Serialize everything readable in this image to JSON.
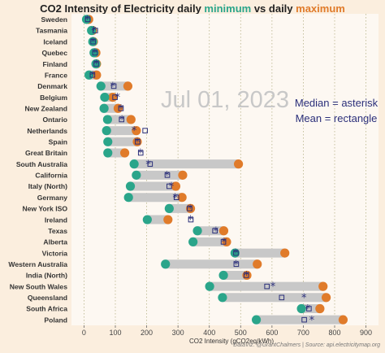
{
  "chart_data": {
    "type": "dumbbell",
    "title_parts": [
      "CO2 Intensity of Electricity daily ",
      "minimum",
      " vs daily ",
      "maximum"
    ],
    "date_label": "Jul 01, 2023",
    "annotation_lines": [
      "Median = asterisk",
      "Mean = rectangle"
    ],
    "xlabel": "CO2 Intensity (gCO2eq/kWh)",
    "xlim": [
      -40,
      940
    ],
    "xticks": [
      0,
      100,
      200,
      300,
      400,
      500,
      600,
      700,
      800,
      900
    ],
    "grid": "vertical dotted",
    "colors": {
      "min": "#2aa58a",
      "max": "#e07b2a",
      "bar": "#c8c8c8",
      "mean_median": "#2b2f7a",
      "background": "#fbeede",
      "plot_bg": "#fdf8f2"
    },
    "regions": [
      {
        "name": "Sweden",
        "min": 8,
        "max": 15,
        "mean": 12,
        "median": 11
      },
      {
        "name": "Tasmania",
        "min": 24,
        "max": 27,
        "mean": 36,
        "median": 31
      },
      {
        "name": "Iceland",
        "min": 28,
        "max": 30,
        "mean": 29,
        "median": 29
      },
      {
        "name": "Quebec",
        "min": 32,
        "max": 38,
        "mean": 35,
        "median": 35
      },
      {
        "name": "Finland",
        "min": 38,
        "max": 40,
        "mean": 39,
        "median": 39
      },
      {
        "name": "France",
        "min": 16,
        "max": 40,
        "mean": 27,
        "median": 28
      },
      {
        "name": "Denmark",
        "min": 54,
        "max": 140,
        "mean": 95,
        "median": 92
      },
      {
        "name": "Belgium",
        "min": 66,
        "max": 92,
        "mean": 99,
        "median": 107
      },
      {
        "name": "New Zealand",
        "min": 64,
        "max": 109,
        "mean": 118,
        "median": 118
      },
      {
        "name": "Ontario",
        "min": 75,
        "max": 150,
        "mean": 120,
        "median": 121
      },
      {
        "name": "Netherlands",
        "min": 72,
        "max": 167,
        "mean": 195,
        "median": 160
      },
      {
        "name": "Spain",
        "min": 76,
        "max": 170,
        "mean": 171,
        "median": 170
      },
      {
        "name": "Great Britain",
        "min": 76,
        "max": 130,
        "mean": 181,
        "median": 180
      },
      {
        "name": "South Australia",
        "min": 160,
        "max": 493,
        "mean": 211,
        "median": 205
      },
      {
        "name": "California",
        "min": 167,
        "max": 315,
        "mean": 266,
        "median": 265
      },
      {
        "name": "Italy (North)",
        "min": 148,
        "max": 293,
        "mean": 272,
        "median": 279
      },
      {
        "name": "Germany",
        "min": 142,
        "max": 313,
        "mean": 295,
        "median": 291
      },
      {
        "name": "New York ISO",
        "min": 272,
        "max": 340,
        "mean": 337,
        "median": 339
      },
      {
        "name": "Ireland",
        "min": 202,
        "max": 268,
        "mean": 341,
        "median": 340
      },
      {
        "name": "Texas",
        "min": 362,
        "max": 446,
        "mean": 418,
        "median": 421
      },
      {
        "name": "Alberta",
        "min": 348,
        "max": 455,
        "mean": 445,
        "median": 447
      },
      {
        "name": "Victoria",
        "min": 482,
        "max": 641,
        "mean": 485,
        "median": 484
      },
      {
        "name": "Western Australia",
        "min": 260,
        "max": 553,
        "mean": 486,
        "median": 485
      },
      {
        "name": "India (North)",
        "min": 445,
        "max": 520,
        "mean": 518,
        "median": 519
      },
      {
        "name": "New South Wales",
        "min": 401,
        "max": 763,
        "mean": 584,
        "median": 603
      },
      {
        "name": "Queensland",
        "min": 442,
        "max": 773,
        "mean": 631,
        "median": 702
      },
      {
        "name": "South Africa",
        "min": 694,
        "max": 753,
        "mean": 718,
        "median": 714
      },
      {
        "name": "Poland",
        "min": 550,
        "max": 827,
        "mean": 703,
        "median": 727
      }
    ]
  },
  "credit": "DataViz: @GrantChalmers | Source: api.electricitymap.org"
}
